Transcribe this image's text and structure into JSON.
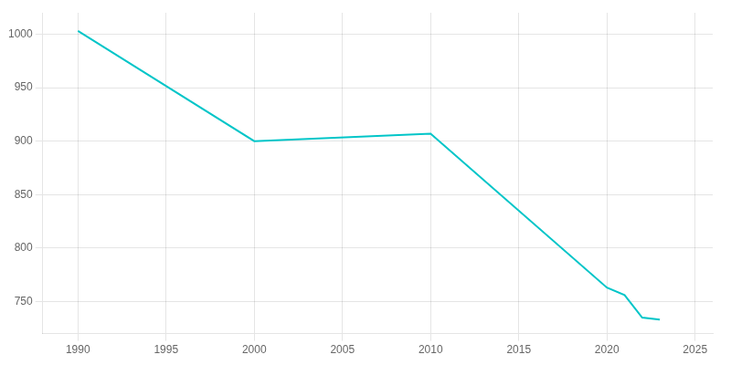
{
  "chart_data": {
    "type": "line",
    "x": [
      1990,
      2000,
      2010,
      2020,
      2021,
      2022,
      2023
    ],
    "values": [
      1003,
      900,
      907,
      763,
      756,
      735,
      733
    ],
    "color": "#00C5C8",
    "xlim": [
      1988,
      2026
    ],
    "xticks": [
      1990,
      1995,
      2000,
      2005,
      2010,
      2015,
      2020,
      2025
    ],
    "ylim": [
      720,
      1020
    ],
    "yticks": [
      750,
      800,
      850,
      900,
      950,
      1000
    ],
    "grid": true
  }
}
